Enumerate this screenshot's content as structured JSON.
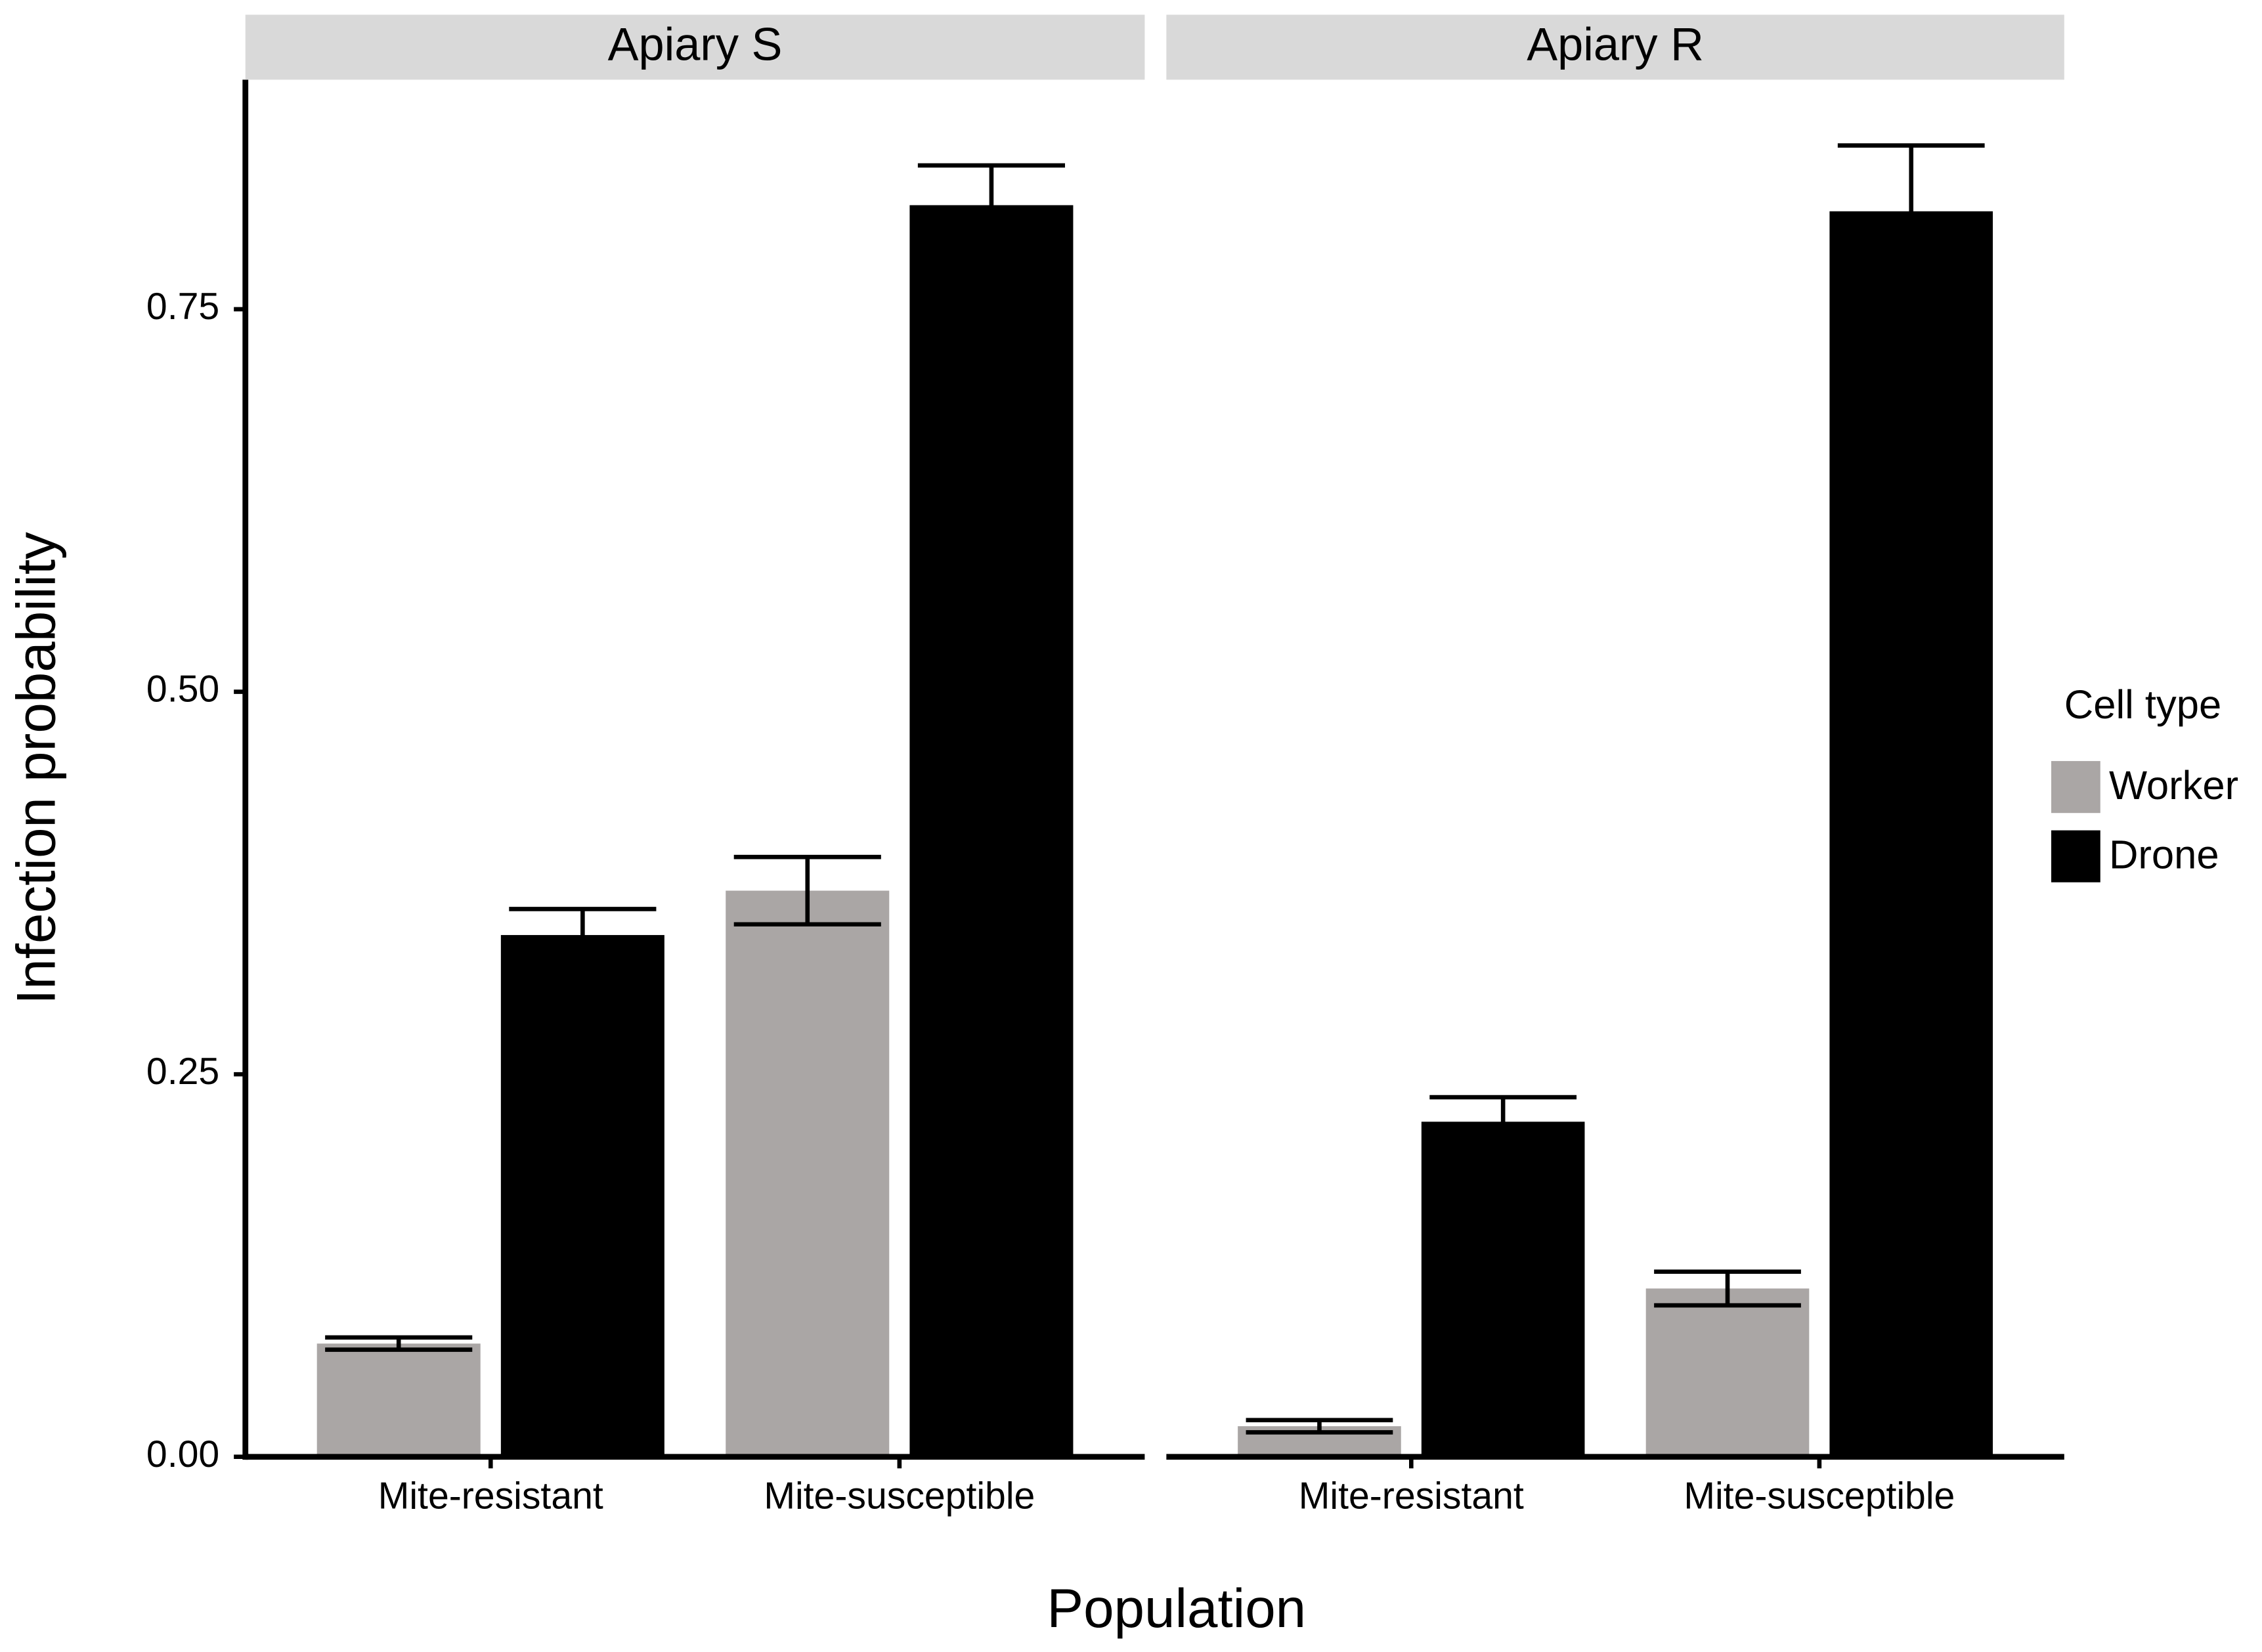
{
  "chart_data": {
    "type": "bar",
    "x_label": "Population",
    "y_label": "Infection probability",
    "legend_title": "Cell type",
    "categories": [
      "Mite-resistant",
      "Mite-susceptible"
    ],
    "series": [
      {
        "name": "Worker",
        "color": "#aaa6a5"
      },
      {
        "name": "Drone",
        "color": "#000000"
      }
    ],
    "ylim": [
      0,
      0.9
    ],
    "yticks": [
      {
        "value": 0,
        "label": "0.00"
      },
      {
        "value": 0.25,
        "label": "0.25"
      },
      {
        "value": 0.5,
        "label": "0.50"
      },
      {
        "value": 0.75,
        "label": "0.75"
      }
    ],
    "facets": [
      {
        "title": "Apiary S",
        "series": [
          {
            "values": [
              0.074,
              0.37
            ],
            "errors": [
              0.004,
              0.022
            ]
          },
          {
            "values": [
              0.341,
              0.818
            ],
            "errors": [
              0.017,
              0.026
            ]
          }
        ]
      },
      {
        "title": "Apiary R",
        "series": [
          {
            "values": [
              0.02,
              0.11
            ],
            "errors": [
              0.004,
              0.011
            ]
          },
          {
            "values": [
              0.219,
              0.814
            ],
            "errors": [
              0.016,
              0.043
            ]
          }
        ]
      }
    ]
  }
}
